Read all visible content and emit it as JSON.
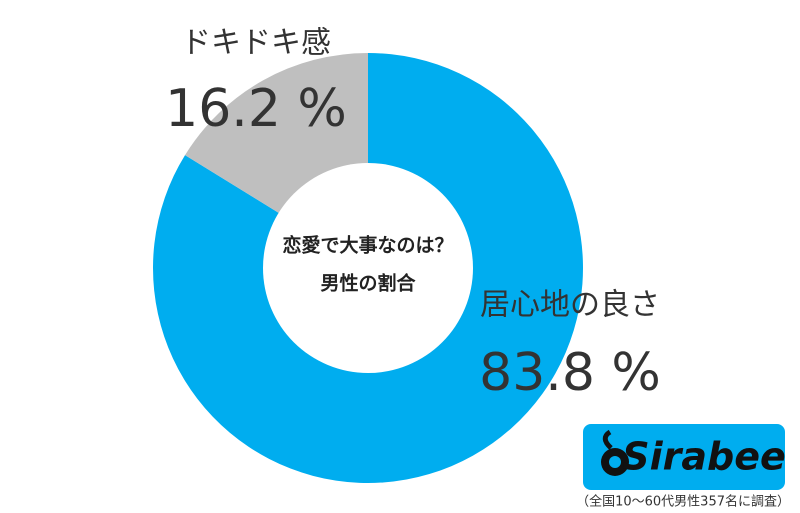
{
  "chart_data": {
    "type": "donut",
    "title": "恋愛で大事なのは？",
    "subtitle": "男性の割合",
    "categories": [
      "居心地の良さ",
      "ドキドキ感"
    ],
    "values": [
      83.8,
      16.2
    ],
    "value_labels": [
      "83.8 %",
      "16.2 %"
    ],
    "colors": [
      "#00adef",
      "#bfbfbf"
    ],
    "logo": "Sirabee",
    "note": "（全国10～60代男性357名に調査）"
  }
}
